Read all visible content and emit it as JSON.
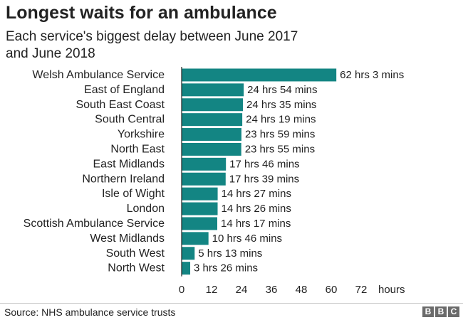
{
  "header": {
    "title": "Longest waits for an ambulance",
    "subtitle": "Each service's biggest delay between June 2017 and June 2018"
  },
  "footer": {
    "source": "Source: NHS ambulance service trusts",
    "logo_letters": [
      "B",
      "B",
      "C"
    ]
  },
  "colors": {
    "bar": "#138583",
    "axis": "#222222"
  },
  "chart_data": {
    "type": "bar",
    "orientation": "horizontal",
    "title": "Longest waits for an ambulance",
    "subtitle": "Each service's biggest delay between June 2017 and June 2018",
    "xlabel": "hours",
    "xlim": [
      0,
      72
    ],
    "xticks": [
      0,
      12,
      24,
      36,
      48,
      60,
      72
    ],
    "grid": false,
    "categories": [
      "Welsh Ambulance Service",
      "East of England",
      "South East Coast",
      "South Central",
      "Yorkshire",
      "North East",
      "East Midlands",
      "Northern Ireland",
      "Isle of Wight",
      "London",
      "Scottish Ambulance Service",
      "West Midlands",
      "South West",
      "North West"
    ],
    "values": [
      62.05,
      24.9,
      24.583,
      24.317,
      23.983,
      23.917,
      17.767,
      17.65,
      14.45,
      14.433,
      14.283,
      10.767,
      5.217,
      3.433
    ],
    "value_labels": [
      "62 hrs 3 mins",
      "24 hrs 54 mins",
      "24 hrs 35 mins",
      "24 hrs 19 mins",
      "23 hrs 59 mins",
      "23 hrs 55 mins",
      "17 hrs 46 mins",
      "17 hrs 39 mins",
      "14 hrs 27 mins",
      "14 hrs 26 mins",
      "14 hrs 17 mins",
      "10 hrs 46 mins",
      "5 hrs 13 mins",
      "3 hrs 26 mins"
    ]
  }
}
